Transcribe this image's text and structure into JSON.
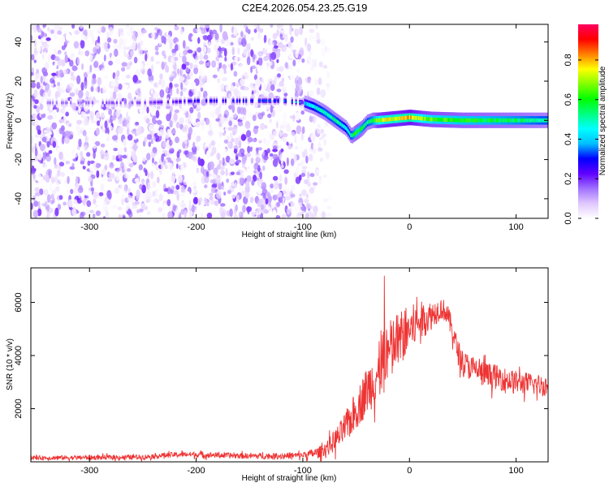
{
  "title": "C2E4.2026.054.23.25.G19",
  "chart_data": [
    {
      "type": "heatmap",
      "xlabel": "Height of straight line (km)",
      "ylabel": "Frequency (Hz)",
      "xlim": [
        -355,
        130
      ],
      "ylim": [
        -50,
        49
      ],
      "xticks": [
        -300,
        -200,
        -100,
        0,
        100
      ],
      "yticks": [
        -40,
        -20,
        0,
        20,
        40
      ],
      "colorbar": {
        "label": "Normalized spectral amplitude",
        "ticks": [
          0.0,
          0.2,
          0.4,
          0.6,
          0.8
        ],
        "range": [
          0,
          0.98
        ],
        "colors": [
          "#ffffff",
          "#e0c8ff",
          "#a070ff",
          "#6000ff",
          "#0000ff",
          "#00bfff",
          "#00ffff",
          "#00ff80",
          "#00ff00",
          "#80ff00",
          "#ffff00",
          "#ff8000",
          "#ff0000",
          "#ff0060"
        ]
      },
      "noise_region_x": [
        -355,
        -85
      ],
      "ridge": {
        "x": [
          -340,
          -300,
          -250,
          -220,
          -200,
          -180,
          -150,
          -120,
          -100,
          -90,
          -80,
          -70,
          -60,
          -55,
          -50,
          -45,
          -40,
          -35,
          -30,
          -20,
          -10,
          0,
          10,
          20,
          50,
          100,
          130
        ],
        "y": [
          9,
          9,
          9,
          9.5,
          10,
          10,
          10,
          10,
          9,
          7,
          4,
          0,
          -4,
          -8,
          -6,
          -4,
          -1,
          0,
          0,
          0.5,
          1,
          1.5,
          1,
          0.5,
          0,
          0,
          0
        ],
        "amplitude": [
          0.15,
          0.18,
          0.2,
          0.25,
          0.3,
          0.3,
          0.32,
          0.35,
          0.4,
          0.5,
          0.55,
          0.55,
          0.5,
          0.55,
          0.65,
          0.6,
          0.55,
          0.6,
          0.75,
          0.8,
          0.8,
          0.85,
          0.75,
          0.7,
          0.65,
          0.6,
          0.55
        ]
      }
    },
    {
      "type": "line",
      "xlabel": "Height of straight line (km)",
      "ylabel": "SNR (10 * v/v)",
      "xlim": [
        -355,
        130
      ],
      "ylim": [
        0,
        7300
      ],
      "xticks": [
        -300,
        -200,
        -100,
        0,
        100
      ],
      "yticks": [
        2000,
        4000,
        6000
      ],
      "color": "#ee3333",
      "envelope": {
        "x": [
          -355,
          -300,
          -250,
          -230,
          -210,
          -180,
          -150,
          -120,
          -100,
          -85,
          -75,
          -65,
          -55,
          -45,
          -40,
          -30,
          -20,
          -10,
          0,
          10,
          20,
          30,
          35,
          40,
          45,
          50,
          60,
          70,
          80,
          90,
          100,
          110,
          120,
          130
        ],
        "y": [
          150,
          160,
          180,
          250,
          280,
          250,
          220,
          220,
          250,
          350,
          600,
          1000,
          1600,
          2300,
          2700,
          3300,
          4000,
          4600,
          5000,
          5300,
          5500,
          5800,
          5600,
          5000,
          4200,
          3700,
          3500,
          3300,
          3200,
          3100,
          3000,
          2950,
          2900,
          2850
        ]
      },
      "noise_amplitude": {
        "x": [
          -355,
          -100,
          -80,
          -60,
          -40,
          -20,
          0,
          30,
          50,
          130
        ],
        "y": [
          80,
          120,
          250,
          600,
          900,
          1300,
          900,
          400,
          500,
          400
        ]
      }
    }
  ]
}
